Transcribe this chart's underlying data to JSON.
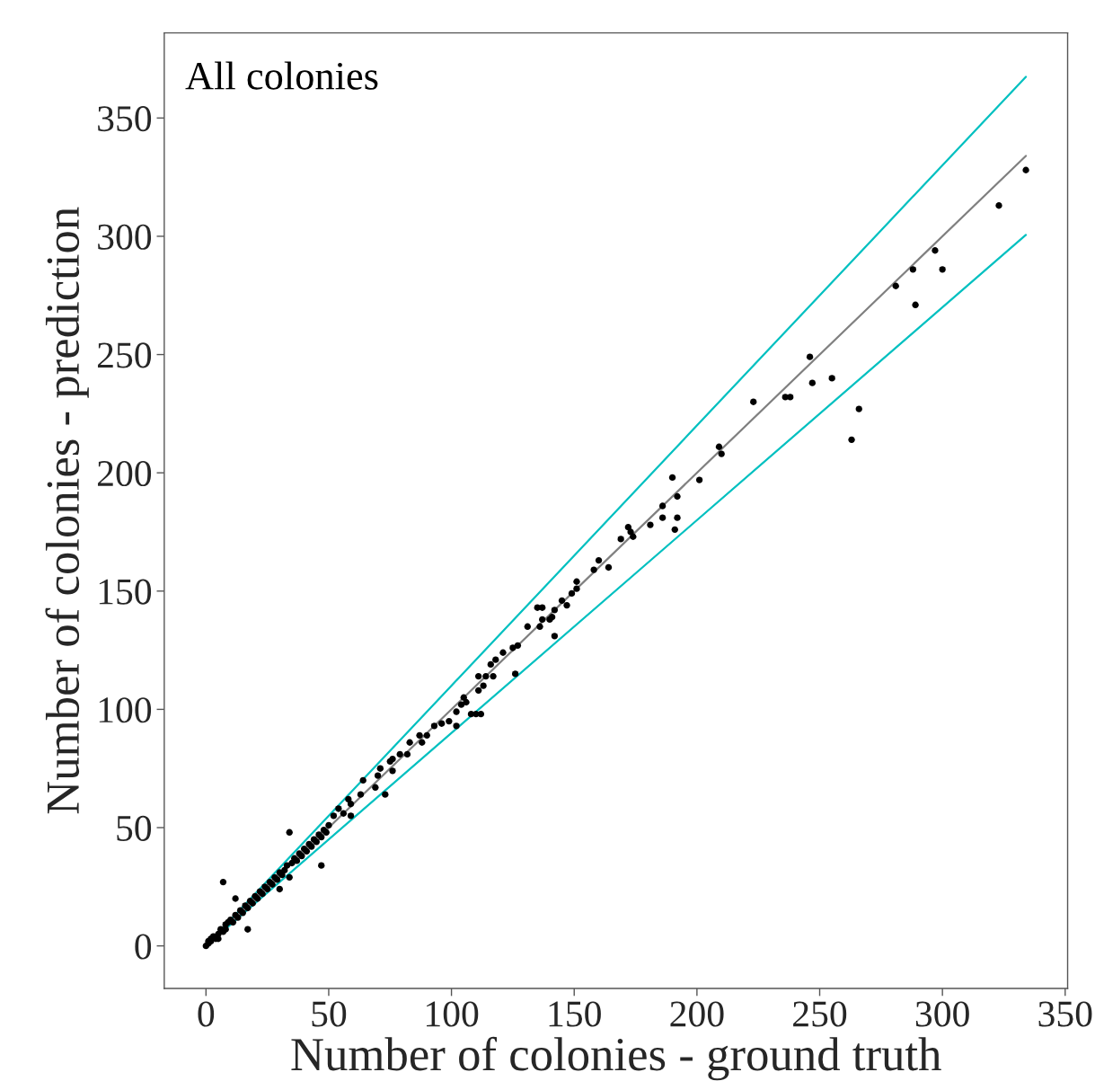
{
  "chart_data": {
    "type": "scatter",
    "xlabel": "Number of colonies - ground truth",
    "ylabel": "Number of colonies - prediction",
    "annotations": [
      "All colonies"
    ],
    "xlim": [
      -17,
      351
    ],
    "ylim": [
      -18,
      386
    ],
    "xticks": [
      0,
      50,
      100,
      150,
      200,
      250,
      300,
      350
    ],
    "yticks": [
      0,
      50,
      100,
      150,
      200,
      250,
      300,
      350
    ],
    "grid": false,
    "legend": false,
    "series": [
      {
        "type": "line",
        "color": "#00c0c0",
        "x": [
          0,
          334
        ],
        "values": [
          0,
          367.4
        ]
      },
      {
        "type": "line",
        "color": "#00c0c0",
        "x": [
          0,
          334
        ],
        "values": [
          0,
          300.6
        ]
      },
      {
        "type": "line",
        "color": "#808080",
        "x": [
          0,
          334
        ],
        "values": [
          0,
          334
        ]
      },
      {
        "color": "#000000",
        "marker": "circle",
        "x": [
          334,
          323,
          297,
          288,
          300,
          281,
          289,
          246,
          255,
          247,
          223,
          236,
          238,
          266,
          263,
          209,
          210,
          201,
          190,
          192,
          192,
          191,
          186,
          186,
          181,
          172,
          173,
          174,
          169,
          164,
          160,
          158,
          151,
          151,
          149,
          147,
          145,
          142,
          141,
          142,
          140,
          137,
          137,
          135,
          136,
          131,
          127,
          125,
          126,
          121,
          118,
          116,
          117,
          114,
          113,
          111,
          111,
          112,
          110,
          108,
          106,
          105,
          104,
          102,
          102,
          99,
          93,
          96,
          90,
          87,
          88,
          83,
          82,
          79,
          76,
          75,
          76,
          73,
          71,
          70,
          69,
          64,
          63,
          59,
          56,
          54,
          52,
          58,
          34,
          47,
          7,
          12,
          17,
          30,
          34,
          59,
          0,
          1,
          1,
          2,
          2,
          3,
          4,
          5,
          5,
          6,
          7,
          8,
          8,
          9,
          10,
          11,
          12,
          13,
          14,
          15,
          16,
          17,
          18,
          19,
          20,
          21,
          22,
          23,
          24,
          25,
          26,
          27,
          28,
          29,
          30,
          31,
          32,
          33,
          35,
          36,
          37,
          38,
          39,
          40,
          41,
          42,
          43,
          44,
          45,
          46,
          47,
          48,
          49,
          50
        ],
        "values": [
          328,
          313,
          294,
          286,
          286,
          279,
          271,
          249,
          240,
          238,
          230,
          232,
          232,
          227,
          214,
          211,
          208,
          197,
          198,
          190,
          181,
          176,
          181,
          186,
          178,
          177,
          175,
          173,
          172,
          160,
          163,
          159,
          154,
          151,
          149,
          144,
          146,
          142,
          139,
          131,
          138,
          138,
          143,
          143,
          135,
          135,
          127,
          126,
          115,
          124,
          121,
          119,
          114,
          114,
          110,
          114,
          108,
          98,
          98,
          98,
          103,
          105,
          102,
          93,
          99,
          95,
          93,
          94,
          89,
          89,
          86,
          86,
          81,
          81,
          79,
          78,
          74,
          64,
          75,
          72,
          67,
          70,
          64,
          60,
          56,
          58,
          55,
          62,
          48,
          34,
          27,
          20,
          7,
          24,
          29,
          55,
          0,
          2,
          1,
          3,
          2,
          4,
          3,
          5,
          3,
          7,
          6,
          9,
          7,
          10,
          11,
          10,
          13,
          12,
          15,
          14,
          17,
          16,
          19,
          18,
          21,
          20,
          23,
          22,
          25,
          24,
          27,
          26,
          29,
          28,
          31,
          30,
          32,
          34,
          35,
          37,
          36,
          39,
          38,
          41,
          40,
          43,
          42,
          45,
          44,
          47,
          46,
          49,
          48,
          51
        ]
      }
    ]
  }
}
